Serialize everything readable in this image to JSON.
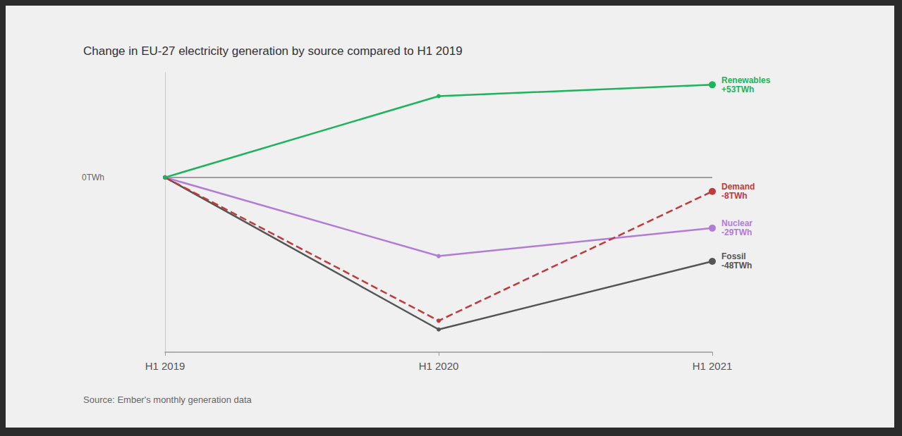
{
  "chart_data": {
    "type": "line",
    "title": "Change in EU-27 electricity generation by source compared to H1 2019",
    "source": "Source: Ember's monthly generation data",
    "categories": [
      "H1 2019",
      "H1 2020",
      "H1 2021"
    ],
    "ylim": [
      -100,
      60
    ],
    "yticks": [
      {
        "value": 0,
        "label": "0TWh"
      }
    ],
    "grid": true,
    "tick_labels": true,
    "series": [
      {
        "name": "Renewables",
        "color": "#1db35a",
        "marker": "circle",
        "line_style": "solid",
        "values": [
          0,
          46.5,
          53
        ],
        "value_labels": [
          null,
          null,
          "+53TWh"
        ]
      },
      {
        "name": "Demand",
        "color": "#c0393b",
        "marker": "circle",
        "line_style": "dashed",
        "values": [
          0,
          -82,
          -8
        ],
        "value_labels": [
          null,
          null,
          "-8TWh"
        ]
      },
      {
        "name": "Nuclear",
        "color": "#b07cd8",
        "marker": "circle",
        "line_style": "solid",
        "values": [
          0,
          -45,
          -29
        ],
        "value_labels": [
          null,
          null,
          "-29TWh"
        ]
      },
      {
        "name": "Fossil",
        "color": "#555555",
        "marker": "circle",
        "line_style": "solid",
        "values": [
          0,
          -87,
          -48
        ],
        "value_labels": [
          null,
          null,
          "-48TWh"
        ]
      }
    ]
  }
}
